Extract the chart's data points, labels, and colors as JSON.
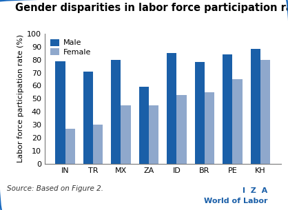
{
  "title": "Gender disparities in labor force participation rates",
  "categories": [
    "IN",
    "TR",
    "MX",
    "ZA",
    "ID",
    "BR",
    "PE",
    "KH"
  ],
  "male_values": [
    79,
    71,
    80,
    59,
    85,
    78,
    84,
    88
  ],
  "female_values": [
    27,
    30,
    45,
    45,
    53,
    55,
    65,
    80
  ],
  "male_color": "#1a5fa8",
  "female_color": "#8fa8cc",
  "ylabel": "Labor force participation rate (%)",
  "ylim": [
    0,
    100
  ],
  "yticks": [
    0,
    10,
    20,
    30,
    40,
    50,
    60,
    70,
    80,
    90,
    100
  ],
  "source_text": "Source: Based on Figure 2.",
  "iza_text": "I  Z  A",
  "wol_text": "World of Labor",
  "legend_labels": [
    "Male",
    "Female"
  ],
  "bg_color": "#ffffff",
  "border_color": "#1a6abf",
  "title_fontsize": 10.5,
  "axis_fontsize": 8,
  "tick_fontsize": 8,
  "source_fontsize": 7.5,
  "iza_fontsize": 8,
  "wol_fontsize": 8,
  "bar_width": 0.35
}
